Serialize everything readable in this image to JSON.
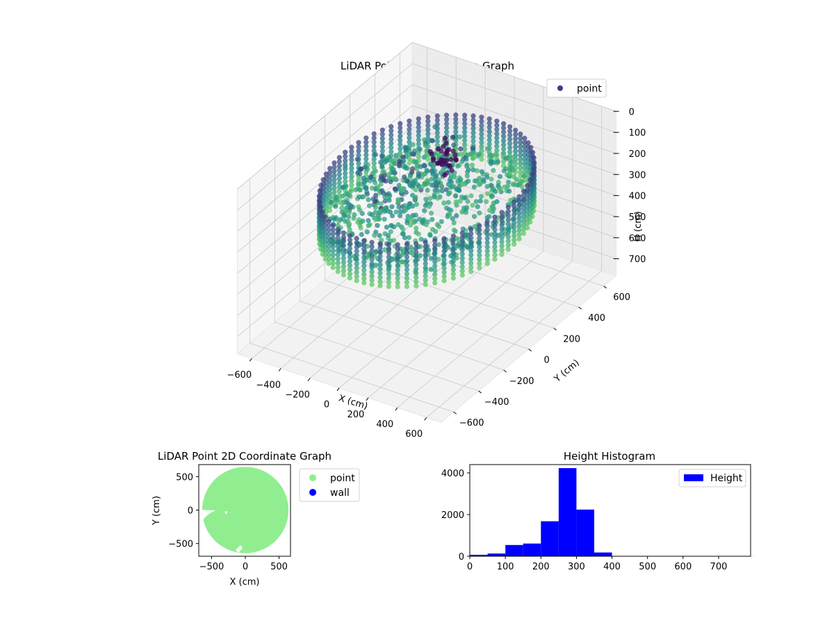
{
  "chart_data": [
    {
      "type": "scatter",
      "title": "LiDAR Point 3D Coordinate Graph",
      "xlabel": "X (cm)",
      "ylabel": "Y (cm)",
      "zlabel": "H (cm)",
      "xlim": [
        -700,
        700
      ],
      "ylim": [
        -700,
        700
      ],
      "zlim": [
        0,
        780
      ],
      "z_inverted": true,
      "x_ticks": [
        "−600",
        "−400",
        "−200",
        "0",
        "200",
        "400",
        "600"
      ],
      "y_ticks": [
        "−600",
        "−400",
        "−200",
        "0",
        "200",
        "400",
        "600"
      ],
      "z_ticks": [
        "0",
        "100",
        "200",
        "300",
        "400",
        "500",
        "600",
        "700"
      ],
      "legend": {
        "position": "top-right",
        "entries": [
          {
            "label": "point",
            "color": "#443a83"
          }
        ]
      },
      "colormap": "viridis",
      "series": [
        {
          "name": "point",
          "description_free": true,
          "wall_radius": 560,
          "wall_height_range": [
            140,
            340
          ],
          "floor_height_range": [
            220,
            300
          ]
        }
      ],
      "grid": true
    },
    {
      "type": "scatter",
      "title": "LiDAR Point 2D Coordinate Graph",
      "xlabel": "X (cm)",
      "ylabel": "Y (cm)",
      "xlim": [
        -690,
        670
      ],
      "ylim": [
        -690,
        680
      ],
      "x_ticks": [
        "−500",
        "0",
        "500"
      ],
      "y_ticks": [
        "500",
        "0",
        "−500"
      ],
      "legend": {
        "position": "outside-right",
        "entries": [
          {
            "label": "point",
            "color": "#90ee90"
          },
          {
            "label": "wall",
            "color": "#0000ff"
          }
        ]
      },
      "point_cloud_radius": 640
    },
    {
      "type": "bar",
      "title": "Height Histogram",
      "xlabel": "",
      "ylabel": "",
      "xlim": [
        0,
        790
      ],
      "ylim": [
        0,
        4400
      ],
      "x_ticks": [
        "0",
        "100",
        "200",
        "300",
        "400",
        "500",
        "600",
        "700"
      ],
      "y_ticks": [
        "0",
        "2000",
        "4000"
      ],
      "bin_width": 50,
      "bins": [
        0,
        50,
        100,
        150,
        200,
        250,
        300,
        350,
        400,
        450,
        500,
        550,
        600,
        650,
        700,
        750
      ],
      "values": [
        70,
        130,
        540,
        610,
        1680,
        4230,
        2240,
        180,
        8,
        5,
        4,
        3,
        3,
        2,
        2,
        3
      ],
      "color": "#0000ff",
      "legend": {
        "position": "top-right",
        "entries": [
          {
            "label": "Height",
            "color": "#0000ff"
          }
        ]
      }
    }
  ]
}
